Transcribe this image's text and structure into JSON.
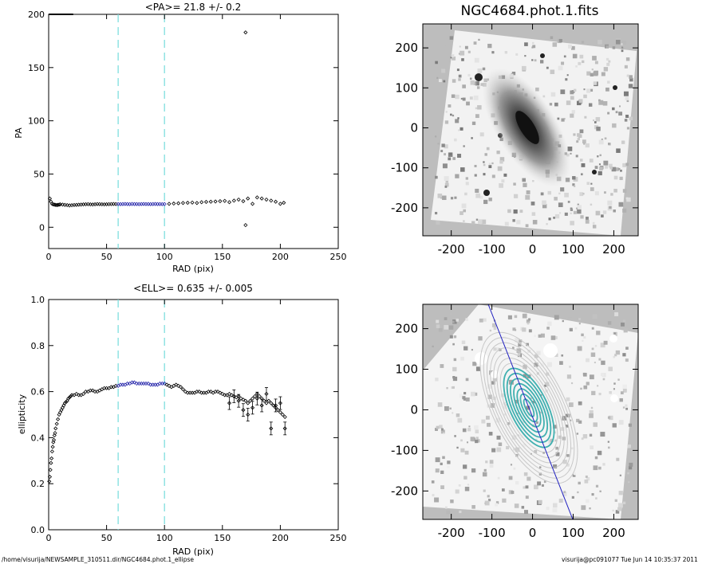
{
  "chart_data": [
    {
      "type": "scatter",
      "panel": "pa-profile",
      "title": "<PA>=  21.8 +/-   0.2",
      "xlabel": "RAD (pix)",
      "ylabel": "PA",
      "xlim": [
        0,
        250
      ],
      "ylim": [
        -20,
        200
      ],
      "xticks": [
        "0",
        "50",
        "100",
        "150",
        "200",
        "250"
      ],
      "yticks": [
        "0",
        "50",
        "100",
        "150",
        "200"
      ],
      "fit_range_lines": [
        60,
        100
      ],
      "series": [
        {
          "role": "points",
          "x": [
            1,
            2,
            3,
            4,
            5,
            6,
            7,
            8,
            9,
            10,
            12,
            14,
            16,
            18,
            20,
            22,
            24,
            26,
            28,
            30,
            32,
            34,
            36,
            38,
            40,
            42,
            44,
            46,
            48,
            50,
            52,
            54,
            56,
            58,
            60,
            62,
            64,
            66,
            68,
            70,
            72,
            74,
            76,
            78,
            80,
            82,
            84,
            86,
            88,
            90,
            92,
            94,
            96,
            98,
            100,
            104,
            108,
            112,
            116,
            120,
            124,
            128,
            132,
            136,
            140,
            144,
            148,
            152,
            156,
            160,
            164,
            168,
            172,
            176,
            180,
            184,
            188,
            192,
            196,
            200,
            203
          ],
          "y": [
            27,
            24,
            22,
            21.5,
            21.2,
            21,
            20.8,
            21,
            21.2,
            21.5,
            21.3,
            21,
            20.8,
            20.5,
            20.7,
            20.9,
            21,
            21.2,
            21.3,
            21.5,
            21.6,
            21.7,
            21.5,
            21.4,
            21.6,
            21.8,
            21.7,
            21.6,
            21.5,
            21.6,
            21.7,
            21.8,
            21.9,
            21.8,
            21.8,
            21.7,
            21.8,
            21.9,
            21.8,
            21.7,
            21.9,
            21.8,
            21.8,
            21.7,
            21.8,
            21.9,
            21.8,
            21.8,
            21.7,
            21.8,
            21.9,
            21.8,
            21.8,
            21.7,
            21.8,
            22,
            22.3,
            22.5,
            22.8,
            23,
            23.2,
            22.8,
            23.5,
            23.8,
            24,
            24.2,
            24.5,
            24.8,
            23.5,
            25,
            26,
            24.5,
            27,
            22,
            28,
            27,
            26,
            25,
            24,
            22,
            23
          ]
        },
        {
          "role": "outliers",
          "x": [
            170,
            170
          ],
          "y": [
            183,
            2
          ]
        },
        {
          "role": "saturated",
          "x": [
            0.2,
            0.3,
            0.4,
            0.5
          ],
          "y": [
            200,
            200,
            200,
            200
          ]
        }
      ]
    },
    {
      "type": "scatter",
      "panel": "ellipticity-profile",
      "title": "<ELL>= 0.635 +/-  0.005",
      "xlabel": "RAD (pix)",
      "ylabel": "ellipticity",
      "xlim": [
        0,
        250
      ],
      "ylim": [
        0.0,
        1.0
      ],
      "xticks": [
        "0",
        "50",
        "100",
        "150",
        "200",
        "250"
      ],
      "yticks": [
        "0.0",
        "0.2",
        "0.4",
        "0.6",
        "0.8",
        "1.0"
      ],
      "fit_range_lines": [
        60,
        100
      ],
      "series": [
        {
          "role": "points",
          "x": [
            0.5,
            1,
            1.5,
            2,
            2.5,
            3,
            3.5,
            4,
            4.5,
            5,
            5.5,
            6,
            7,
            8,
            9,
            10,
            11,
            12,
            13,
            14,
            15,
            16,
            17,
            18,
            19,
            20,
            22,
            24,
            26,
            28,
            30,
            32,
            34,
            36,
            38,
            40,
            42,
            44,
            46,
            48,
            50,
            52,
            54,
            56,
            58,
            60,
            62,
            64,
            66,
            68,
            70,
            72,
            74,
            76,
            78,
            80,
            82,
            84,
            86,
            88,
            90,
            92,
            94,
            96,
            98,
            100,
            102,
            104,
            106,
            108,
            110,
            112,
            114,
            116,
            118,
            120,
            122,
            124,
            126,
            128,
            130,
            132,
            134,
            136,
            138,
            140,
            142,
            144,
            146,
            148,
            150,
            152,
            154,
            156,
            158,
            160,
            162,
            164,
            166,
            168,
            170,
            172,
            174,
            176,
            178,
            180,
            182,
            184,
            186,
            188,
            190,
            192,
            194,
            196,
            198,
            200,
            202,
            204
          ],
          "y": [
            0.21,
            0.23,
            0.26,
            0.29,
            0.31,
            0.34,
            0.36,
            0.38,
            0.39,
            0.41,
            0.42,
            0.44,
            0.46,
            0.48,
            0.5,
            0.51,
            0.52,
            0.53,
            0.54,
            0.55,
            0.555,
            0.56,
            0.57,
            0.575,
            0.58,
            0.585,
            0.585,
            0.59,
            0.585,
            0.585,
            0.59,
            0.6,
            0.6,
            0.605,
            0.605,
            0.6,
            0.6,
            0.605,
            0.61,
            0.615,
            0.615,
            0.615,
            0.62,
            0.62,
            0.625,
            0.625,
            0.63,
            0.63,
            0.63,
            0.635,
            0.635,
            0.64,
            0.64,
            0.635,
            0.635,
            0.635,
            0.635,
            0.635,
            0.635,
            0.63,
            0.63,
            0.63,
            0.63,
            0.635,
            0.635,
            0.635,
            0.63,
            0.625,
            0.62,
            0.625,
            0.63,
            0.625,
            0.62,
            0.61,
            0.6,
            0.595,
            0.595,
            0.595,
            0.595,
            0.6,
            0.6,
            0.595,
            0.595,
            0.595,
            0.6,
            0.6,
            0.595,
            0.6,
            0.6,
            0.595,
            0.59,
            0.585,
            0.585,
            0.59,
            0.585,
            0.58,
            0.575,
            0.58,
            0.57,
            0.565,
            0.56,
            0.55,
            0.56,
            0.57,
            0.58,
            0.59,
            0.58,
            0.57,
            0.56,
            0.55,
            0.56,
            0.55,
            0.54,
            0.53,
            0.52,
            0.51,
            0.5,
            0.49
          ]
        },
        {
          "role": "errorbars",
          "x": [
            156,
            160,
            164,
            168,
            172,
            176,
            180,
            184,
            188,
            192,
            196,
            200,
            204
          ],
          "y": [
            0.55,
            0.58,
            0.56,
            0.52,
            0.5,
            0.53,
            0.57,
            0.54,
            0.59,
            0.44,
            0.54,
            0.55,
            0.44
          ]
        }
      ]
    }
  ],
  "images": [
    {
      "title": "NGC4684.phot.1.fits",
      "xlim": [
        -270,
        260
      ],
      "ylim": [
        -270,
        260
      ],
      "xticks": [
        "-200",
        "-100",
        "0",
        "100",
        "200"
      ],
      "yticks": [
        "200",
        "100",
        "0",
        "-100",
        "-200"
      ]
    },
    {
      "title": "",
      "xlim": [
        -270,
        260
      ],
      "ylim": [
        -270,
        260
      ],
      "xticks": [
        "-200",
        "-100",
        "0",
        "100",
        "200"
      ],
      "yticks": [
        "200",
        "100",
        "0",
        "-100",
        "-200"
      ]
    }
  ],
  "footer": {
    "path": "/home/visurija/NEWSAMPLE_310511.dir/NGC4684.phot.1_ellipse",
    "stamp": "visurija@pc091077  Tue Jun 14 10:35:37 2011"
  },
  "colors": {
    "fit_line": "#7fdede",
    "fit_points": "#2020a8",
    "contour": "#40b0b0",
    "major_axis": "#2020c0",
    "image_bg": "#bdbdbd"
  }
}
